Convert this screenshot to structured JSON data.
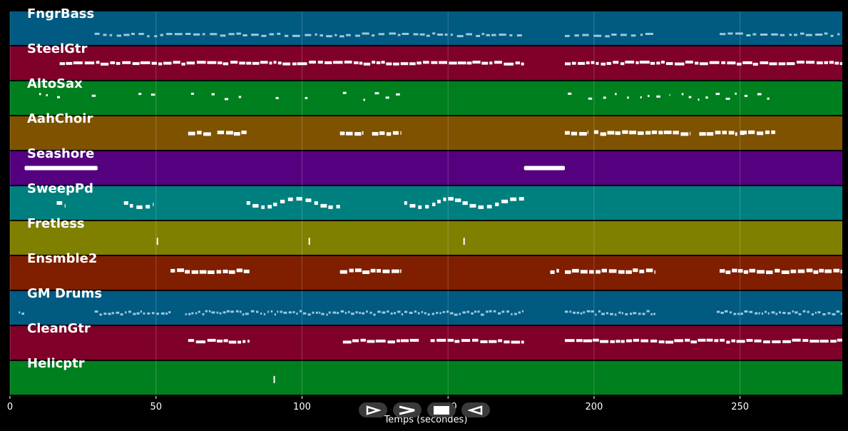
{
  "chart_data": {
    "type": "piano-roll",
    "xlabel": "Temps (secondes)",
    "xlim": [
      0,
      285
    ],
    "xticks": [
      0,
      50,
      100,
      150,
      200,
      250
    ],
    "grid": true,
    "tracks": [
      {
        "name": "FngrBass",
        "color": "#005a82",
        "noteColor": "#9ec8dc",
        "segments": [
          [
            29,
            176
          ],
          [
            190,
            221
          ],
          [
            243,
            285
          ]
        ],
        "style": "dashed",
        "pitch": 0.7
      },
      {
        "name": "SteelGtr",
        "color": "#7f0029",
        "noteColor": "#ffffff",
        "segments": [
          [
            17,
            176
          ],
          [
            190,
            285
          ]
        ],
        "style": "dense",
        "pitch": 0.5
      },
      {
        "name": "AltoSax",
        "color": "#007f1f",
        "noteColor": "#ffffff",
        "segments": [
          [
            10,
            18
          ],
          [
            28,
            31
          ],
          [
            44,
            51
          ],
          [
            62,
            63
          ],
          [
            69,
            82
          ],
          [
            91,
            92
          ],
          [
            101,
            104
          ],
          [
            114,
            116
          ],
          [
            121,
            135
          ],
          [
            191,
            193
          ],
          [
            198,
            226
          ],
          [
            230,
            260
          ]
        ],
        "style": "sparse",
        "pitch": 0.45
      },
      {
        "name": "AahChoir",
        "color": "#7f5200",
        "noteColor": "#ffffff",
        "segments": [
          [
            61,
            69
          ],
          [
            71,
            81
          ],
          [
            113,
            121
          ],
          [
            124,
            134
          ],
          [
            190,
            198
          ],
          [
            200,
            233
          ],
          [
            236,
            249
          ],
          [
            252,
            250
          ],
          [
            250,
            262
          ]
        ],
        "style": "block",
        "pitch": 0.5
      },
      {
        "name": "Seashore",
        "color": "#55007f",
        "noteColor": "#ffffff",
        "segments": [
          [
            5,
            30
          ],
          [
            176,
            190
          ]
        ],
        "style": "thick",
        "pitch": 0.5
      },
      {
        "name": "SweepPd",
        "color": "#007f7f",
        "noteColor": "#ffffff",
        "segments": [
          [
            16,
            19
          ],
          [
            39,
            49
          ],
          [
            81,
            113
          ],
          [
            135,
            176
          ]
        ],
        "style": "wave",
        "pitch": 0.5
      },
      {
        "name": "Fretless",
        "color": "#7f7f00",
        "noteColor": "#ffffff",
        "segments": [
          [
            50,
            51
          ],
          [
            102,
            103
          ],
          [
            155,
            156
          ]
        ],
        "style": "spike",
        "pitch": 0.6
      },
      {
        "name": "Ensmble2",
        "color": "#7f1f00",
        "noteColor": "#ffffff",
        "segments": [
          [
            55,
            82
          ],
          [
            113,
            134
          ],
          [
            185,
            188
          ],
          [
            190,
            221
          ],
          [
            243,
            285
          ]
        ],
        "style": "block",
        "pitch": 0.45
      },
      {
        "name": "GM Drums",
        "color": "#005a82",
        "noteColor": "#9ec8dc",
        "segments": [
          [
            3,
            5
          ],
          [
            29,
            55
          ],
          [
            60,
            176
          ],
          [
            190,
            221
          ],
          [
            242,
            285
          ]
        ],
        "style": "drums",
        "pitch": 0.65
      },
      {
        "name": "CleanGtr",
        "color": "#7f0029",
        "noteColor": "#ffffff",
        "segments": [
          [
            61,
            82
          ],
          [
            114,
            140
          ],
          [
            144,
            176
          ],
          [
            190,
            285
          ]
        ],
        "style": "dense",
        "pitch": 0.45
      },
      {
        "name": "Helicptr",
        "color": "#007f1f",
        "noteColor": "#ffffff",
        "segments": [
          [
            90,
            91
          ]
        ],
        "style": "spike",
        "pitch": 0.55
      }
    ]
  },
  "controls": [
    {
      "name": "play-button",
      "icon": "play-outline-icon"
    },
    {
      "name": "fast-forward-button",
      "icon": "chevron-right-icon"
    },
    {
      "name": "stop-button",
      "icon": "stop-icon"
    },
    {
      "name": "rewind-button",
      "icon": "play-reverse-icon"
    }
  ]
}
